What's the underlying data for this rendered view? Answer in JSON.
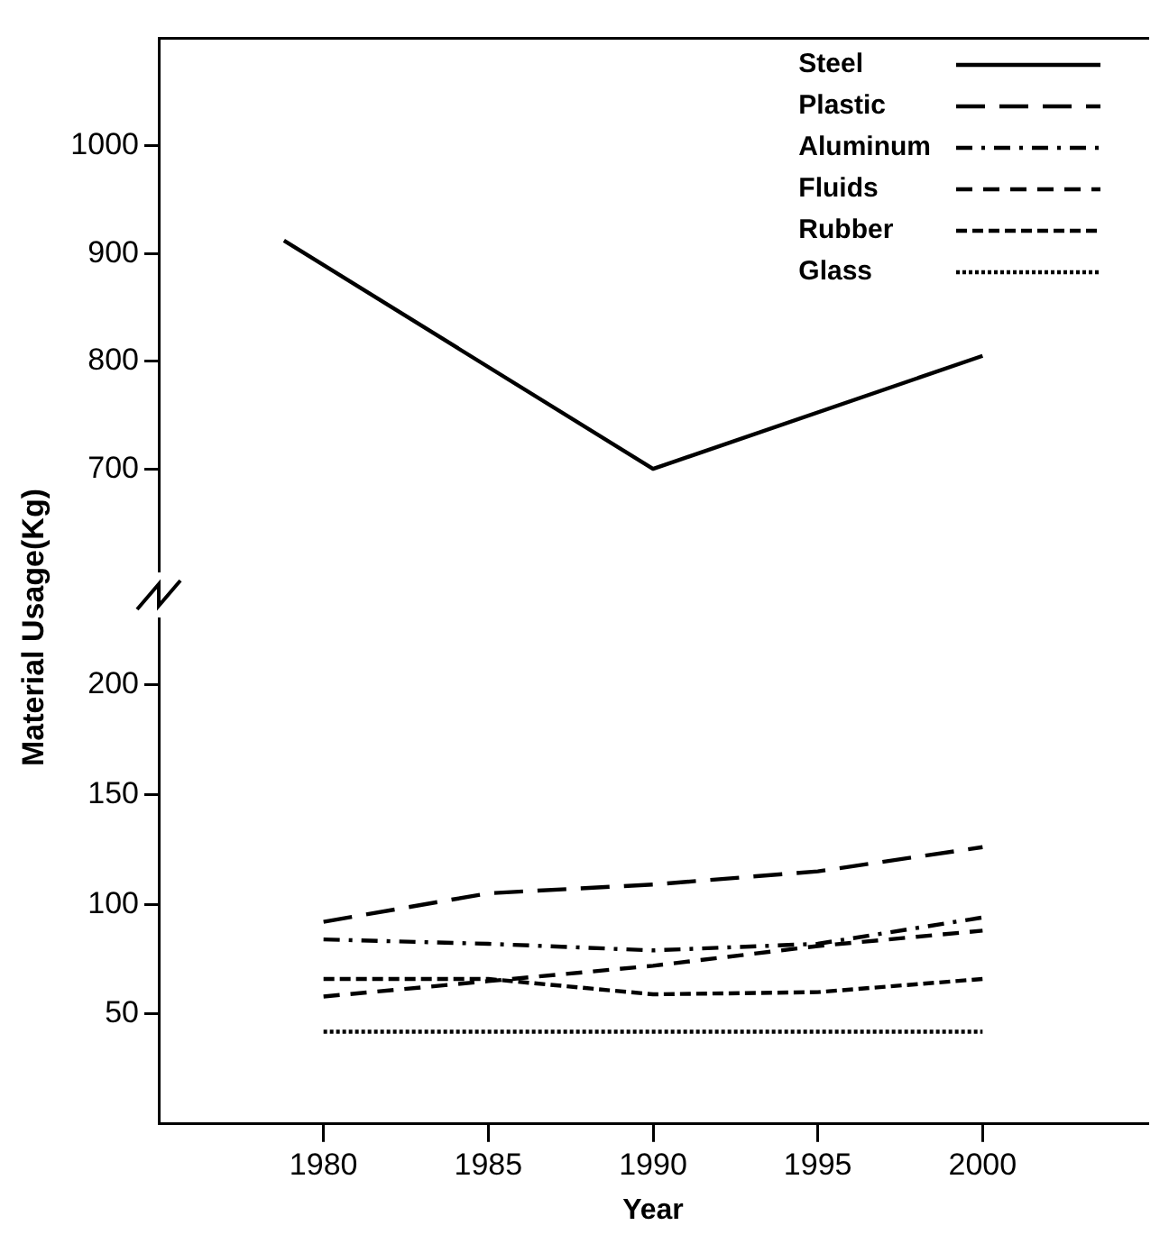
{
  "chart_data": [
    {
      "type": "line",
      "ylabel": "Material Usage(Kg)",
      "xlim": [
        1975,
        2005
      ],
      "ylim": [
        605,
        1100
      ],
      "yticks": [
        700,
        800,
        900,
        1000
      ],
      "tick_labels": "y",
      "grid": false,
      "legend": "top right",
      "marker": "none",
      "series": [
        {
          "name": "Steel",
          "color": "#000000",
          "line_style": "solid",
          "x": [
            1978.8,
            1990,
            2000
          ],
          "values": [
            912,
            700,
            805
          ]
        }
      ]
    },
    {
      "type": "line",
      "xlabel": "Year",
      "xlim": [
        1975,
        2005
      ],
      "xticks": [
        1980,
        1985,
        1990,
        1995,
        2000
      ],
      "ylim": [
        0,
        230
      ],
      "yticks": [
        50,
        100,
        150,
        200
      ],
      "grid": false,
      "marker": "none",
      "x": [
        1980,
        1985,
        1990,
        1995,
        2000
      ],
      "series": [
        {
          "name": "Plastic",
          "color": "#000000",
          "line_style": "dashed",
          "values": [
            92,
            105,
            109,
            115,
            126
          ]
        },
        {
          "name": "Aluminum",
          "color": "#000000",
          "line_style": "dashed",
          "values": [
            84,
            82,
            79,
            82,
            94
          ]
        },
        {
          "name": "Fluids",
          "color": "#000000",
          "line_style": "dashed",
          "values": [
            58,
            65,
            72,
            81,
            88
          ]
        },
        {
          "name": "Rubber",
          "color": "#000000",
          "line_style": "dashed",
          "values": [
            66,
            66,
            59,
            60,
            66
          ]
        },
        {
          "name": "Glass",
          "color": "#000000",
          "line_style": "dotted",
          "values": [
            42,
            42,
            42,
            42,
            42
          ]
        }
      ]
    }
  ]
}
